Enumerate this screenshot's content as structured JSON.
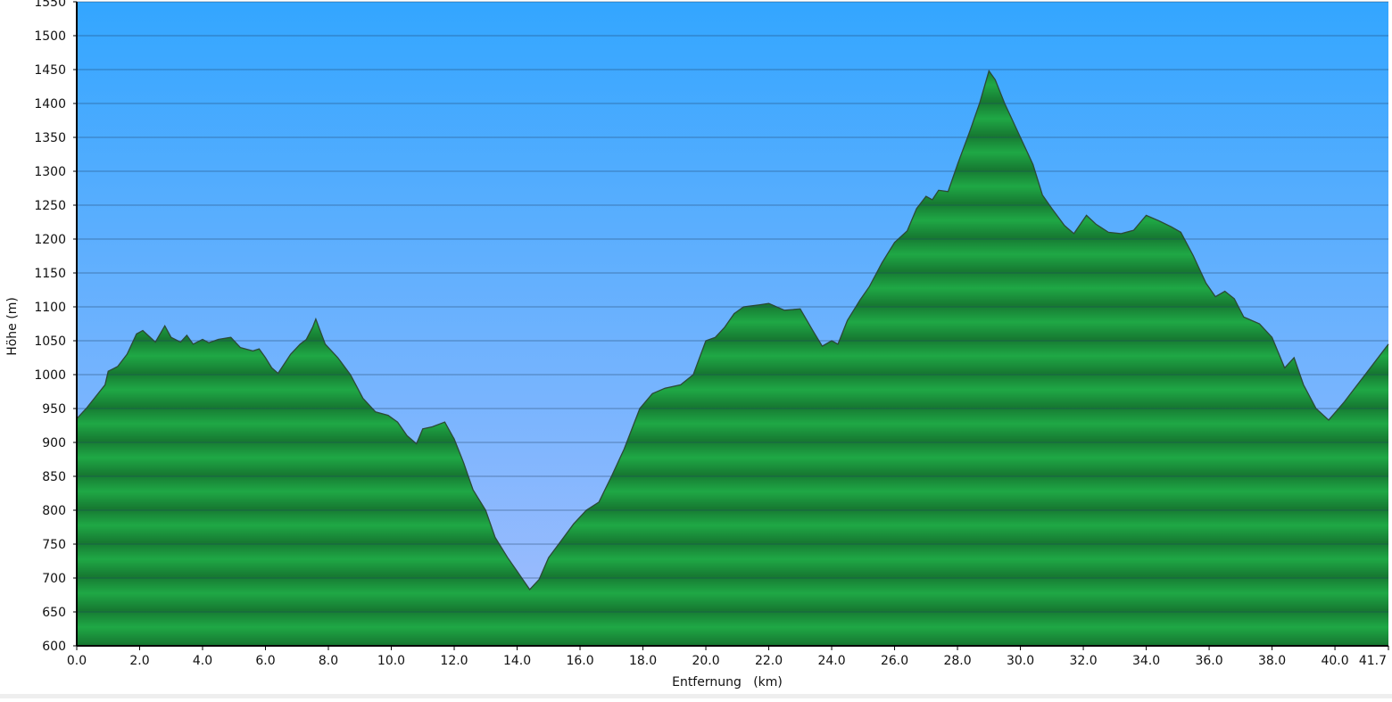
{
  "chart_data": {
    "type": "area",
    "x_label": "Entfernung   (km)",
    "y_label": "Höhe (m)",
    "color": "#1fa845",
    "grid": true,
    "x": [
      0,
      0.3,
      0.9,
      1.0,
      1.3,
      1.6,
      1.9,
      2.1,
      2.5,
      2.8,
      3.0,
      3.3,
      3.5,
      3.7,
      4.0,
      4.2,
      4.5,
      4.9,
      5.2,
      5.6,
      5.8,
      6.0,
      6.2,
      6.4,
      6.8,
      7.1,
      7.3,
      7.5,
      7.6,
      7.9,
      8.3,
      8.7,
      9.1,
      9.5,
      9.9,
      10.2,
      10.5,
      10.8,
      11.0,
      11.3,
      11.7,
      12.0,
      12.3,
      12.6,
      13.0,
      13.3,
      13.7,
      14.0,
      14.4,
      14.7,
      15.0,
      15.4,
      15.8,
      16.2,
      16.6,
      17.0,
      17.4,
      17.9,
      18.3,
      18.7,
      19.2,
      19.6,
      20.0,
      20.3,
      20.6,
      20.9,
      21.2,
      21.7,
      22.0,
      22.5,
      23.0,
      23.4,
      23.7,
      24.0,
      24.2,
      24.5,
      24.9,
      25.2,
      25.6,
      26.0,
      26.4,
      26.7,
      27.0,
      27.2,
      27.4,
      27.7,
      28.0,
      28.4,
      28.7,
      29.0,
      29.2,
      29.5,
      29.9,
      30.4,
      30.7,
      31.0,
      31.4,
      31.7,
      32.1,
      32.4,
      32.8,
      33.2,
      33.6,
      34.0,
      34.4,
      34.8,
      35.1,
      35.5,
      35.9,
      36.2,
      36.5,
      36.8,
      37.1,
      37.6,
      38.0,
      38.4,
      38.7,
      39.0,
      39.4,
      39.8,
      40.3,
      41.7
    ],
    "values": [
      935,
      950,
      985,
      1005,
      1012,
      1030,
      1060,
      1065,
      1048,
      1072,
      1055,
      1048,
      1058,
      1045,
      1052,
      1047,
      1052,
      1055,
      1040,
      1035,
      1038,
      1025,
      1010,
      1002,
      1030,
      1045,
      1052,
      1070,
      1082,
      1045,
      1025,
      1000,
      965,
      945,
      940,
      930,
      910,
      898,
      920,
      923,
      930,
      905,
      870,
      830,
      800,
      760,
      730,
      710,
      683,
      698,
      730,
      755,
      780,
      800,
      812,
      850,
      890,
      950,
      972,
      980,
      985,
      1000,
      1050,
      1055,
      1070,
      1090,
      1100,
      1103,
      1105,
      1095,
      1097,
      1065,
      1042,
      1050,
      1045,
      1080,
      1110,
      1130,
      1165,
      1195,
      1212,
      1245,
      1263,
      1258,
      1272,
      1270,
      1310,
      1360,
      1400,
      1448,
      1435,
      1400,
      1360,
      1310,
      1265,
      1245,
      1220,
      1208,
      1235,
      1222,
      1210,
      1208,
      1213,
      1235,
      1227,
      1218,
      1210,
      1175,
      1135,
      1115,
      1123,
      1112,
      1085,
      1075,
      1055,
      1010,
      1025,
      985,
      950,
      933,
      960,
      1045
    ],
    "xlim": [
      0,
      41.7
    ],
    "ylim": [
      600,
      1550
    ],
    "xticks": [
      {
        "value": 0,
        "label": "0.0"
      },
      {
        "value": 2,
        "label": "2.0"
      },
      {
        "value": 4,
        "label": "4.0"
      },
      {
        "value": 6,
        "label": "6.0"
      },
      {
        "value": 8,
        "label": "8.0"
      },
      {
        "value": 10,
        "label": "10.0"
      },
      {
        "value": 12,
        "label": "12.0"
      },
      {
        "value": 14,
        "label": "14.0"
      },
      {
        "value": 16,
        "label": "16.0"
      },
      {
        "value": 18,
        "label": "18.0"
      },
      {
        "value": 20,
        "label": "20.0"
      },
      {
        "value": 22,
        "label": "22.0"
      },
      {
        "value": 24,
        "label": "24.0"
      },
      {
        "value": 26,
        "label": "26.0"
      },
      {
        "value": 28,
        "label": "28.0"
      },
      {
        "value": 30,
        "label": "30.0"
      },
      {
        "value": 32,
        "label": "32.0"
      },
      {
        "value": 34,
        "label": "34.0"
      },
      {
        "value": 36,
        "label": "36.0"
      },
      {
        "value": 38,
        "label": "38.0"
      },
      {
        "value": 40,
        "label": "40.0"
      },
      41.7
    ],
    "yticks": [
      600,
      650,
      700,
      750,
      800,
      850,
      900,
      950,
      1000,
      1050,
      1100,
      1150,
      1200,
      1250,
      1300,
      1350,
      1400,
      1450,
      1500,
      1550
    ]
  }
}
